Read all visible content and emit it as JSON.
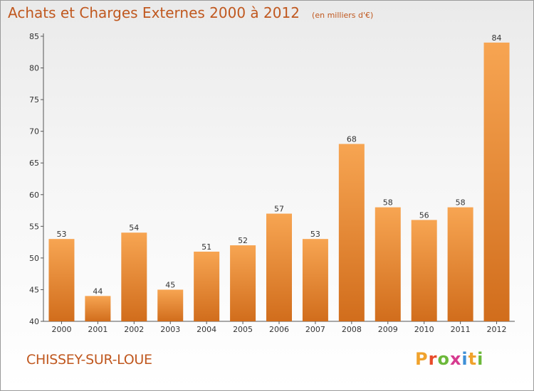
{
  "header": {
    "title": "Achats et Charges Externes 2000 à 2012",
    "unit": "(en milliers d'€)"
  },
  "footer": {
    "location": "CHISSEY-SUR-LOUE",
    "logo_letters": [
      "P",
      "r",
      "o",
      "x",
      "i",
      "t",
      "i"
    ],
    "logo_colors": [
      "#f0a22c",
      "#e84b2a",
      "#6cb83a",
      "#d63a8f",
      "#3e8fd6",
      "#f0a22c",
      "#6cb83a"
    ]
  },
  "colors": {
    "bar_top": "#f7a552",
    "bar_bottom": "#d16d1c",
    "accent": "#c0581f"
  },
  "chart_data": {
    "type": "bar",
    "title": "Achats et Charges Externes 2000 à 2012",
    "categories": [
      "2000",
      "2001",
      "2002",
      "2003",
      "2004",
      "2005",
      "2006",
      "2007",
      "2008",
      "2009",
      "2010",
      "2011",
      "2012"
    ],
    "values": [
      53,
      44,
      54,
      45,
      51,
      52,
      57,
      53,
      68,
      58,
      56,
      58,
      84
    ],
    "ylim": [
      40,
      85
    ],
    "yticks": [
      40,
      45,
      50,
      55,
      60,
      65,
      70,
      75,
      80,
      85
    ],
    "grid": false,
    "xlabel": "",
    "ylabel": ""
  }
}
